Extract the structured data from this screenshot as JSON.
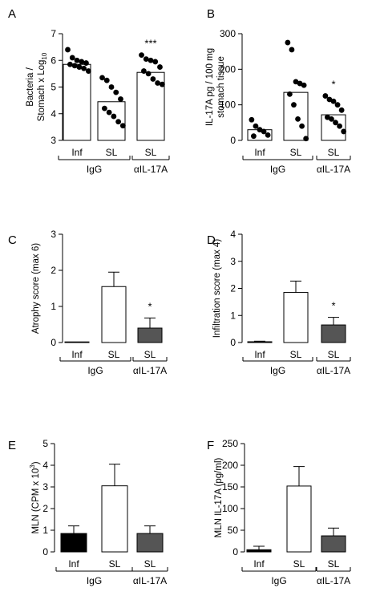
{
  "chart_data": [
    {
      "panel": "A",
      "type": "bar",
      "ylabel_lines": [
        "Bacteria /",
        "Stomach x Log"
      ],
      "ylabel_subscript": "10",
      "ylim": [
        3,
        7
      ],
      "yticks": [
        "3",
        "4",
        "5",
        "6",
        "7"
      ],
      "categories": [
        "Inf",
        "SL",
        "SL"
      ],
      "values": [
        5.85,
        4.45,
        5.55
      ],
      "points": [
        [
          6.4,
          6.1,
          6.0,
          5.95,
          5.9,
          5.85,
          5.8,
          5.75,
          5.7,
          5.6
        ],
        [
          5.35,
          5.25,
          5.0,
          4.8,
          4.55,
          4.2,
          4.05,
          3.9,
          3.7,
          3.55
        ],
        [
          6.2,
          6.05,
          6.0,
          5.95,
          5.75,
          5.6,
          5.5,
          5.3,
          5.15,
          5.1
        ]
      ],
      "bar_fill": [
        "#ffffff",
        "#ffffff",
        "#ffffff"
      ],
      "significance": [
        "",
        "",
        "***"
      ],
      "groups": [
        {
          "label": "IgG",
          "span": [
            0,
            1
          ]
        },
        {
          "label": "αIL-17A",
          "span": [
            2,
            2
          ]
        }
      ]
    },
    {
      "panel": "B",
      "type": "bar",
      "ylabel_lines": [
        "IL-17A pg / 100 mg",
        "stomach tissue"
      ],
      "ylim": [
        0,
        300
      ],
      "yticks": [
        "0",
        "100",
        "200",
        "300"
      ],
      "categories": [
        "Inf",
        "SL",
        "SL"
      ],
      "values": [
        30,
        135,
        72
      ],
      "points": [
        [
          58,
          40,
          30,
          25,
          15,
          12
        ],
        [
          275,
          255,
          165,
          160,
          155,
          130,
          100,
          60,
          40,
          5
        ],
        [
          125,
          115,
          110,
          100,
          85,
          65,
          60,
          50,
          40,
          25
        ]
      ],
      "bar_fill": [
        "#ffffff",
        "#ffffff",
        "#ffffff"
      ],
      "significance": [
        "",
        "",
        "*"
      ],
      "groups": [
        {
          "label": "IgG",
          "span": [
            0,
            1
          ]
        },
        {
          "label": "αIL-17A",
          "span": [
            2,
            2
          ]
        }
      ]
    },
    {
      "panel": "C",
      "type": "bar",
      "ylabel_lines": [
        "Atrophy score (max 6)"
      ],
      "ylim": [
        0,
        3
      ],
      "yticks": [
        "0",
        "1",
        "2",
        "3"
      ],
      "categories": [
        "Inf",
        "SL",
        "SL"
      ],
      "values": [
        0.0,
        1.55,
        0.4
      ],
      "errors": [
        0.0,
        0.4,
        0.28
      ],
      "bar_fill": [
        "#ffffff",
        "#ffffff",
        "#555555"
      ],
      "significance": [
        "",
        "",
        "*"
      ],
      "groups": [
        {
          "label": "IgG",
          "span": [
            0,
            1
          ]
        },
        {
          "label": "αIL-17A",
          "span": [
            2,
            2
          ]
        }
      ]
    },
    {
      "panel": "D",
      "type": "bar",
      "ylabel_lines": [
        "Infiltration score (max 4)"
      ],
      "ylim": [
        0,
        4
      ],
      "yticks": [
        "0",
        "1",
        "2",
        "3",
        "4"
      ],
      "categories": [
        "Inf",
        "SL",
        "SL"
      ],
      "values": [
        0.03,
        1.85,
        0.65
      ],
      "errors": [
        0.02,
        0.42,
        0.28
      ],
      "bar_fill": [
        "#ffffff",
        "#ffffff",
        "#555555"
      ],
      "significance": [
        "",
        "",
        "*"
      ],
      "groups": [
        {
          "label": "IgG",
          "span": [
            0,
            1
          ]
        },
        {
          "label": "αIL-17A",
          "span": [
            2,
            2
          ]
        }
      ]
    },
    {
      "panel": "E",
      "type": "bar",
      "ylabel_lines": [
        "MLN (CPM x 10"
      ],
      "ylabel_superscript": "3",
      "ylabel_suffix": ")",
      "ylim": [
        0,
        5
      ],
      "yticks": [
        "0",
        "1",
        "2",
        "3",
        "4",
        "5"
      ],
      "categories": [
        "Inf",
        "SL",
        "SL"
      ],
      "values": [
        0.85,
        3.05,
        0.85
      ],
      "errors": [
        0.35,
        1.0,
        0.35
      ],
      "bar_fill": [
        "#000000",
        "#ffffff",
        "#555555"
      ],
      "significance": [
        "",
        "",
        ""
      ],
      "groups": [
        {
          "label": "IgG",
          "span": [
            0,
            1
          ]
        },
        {
          "label": "αIL-17A",
          "span": [
            2,
            2
          ]
        }
      ]
    },
    {
      "panel": "F",
      "type": "bar",
      "ylabel_lines": [
        "MLN IL-17A (pg/ml)"
      ],
      "ylim": [
        0,
        250
      ],
      "yticks": [
        "0",
        "50",
        "100",
        "150",
        "200",
        "250"
      ],
      "categories": [
        "Inf",
        "SL",
        "SL"
      ],
      "values": [
        5,
        152,
        37
      ],
      "errors": [
        8,
        45,
        18
      ],
      "bar_fill": [
        "#000000",
        "#ffffff",
        "#555555"
      ],
      "significance": [
        "",
        "",
        ""
      ],
      "groups": [
        {
          "label": "IgG",
          "span": [
            0,
            1
          ]
        },
        {
          "label": "αIL-17A",
          "span": [
            2,
            2
          ]
        }
      ]
    }
  ]
}
